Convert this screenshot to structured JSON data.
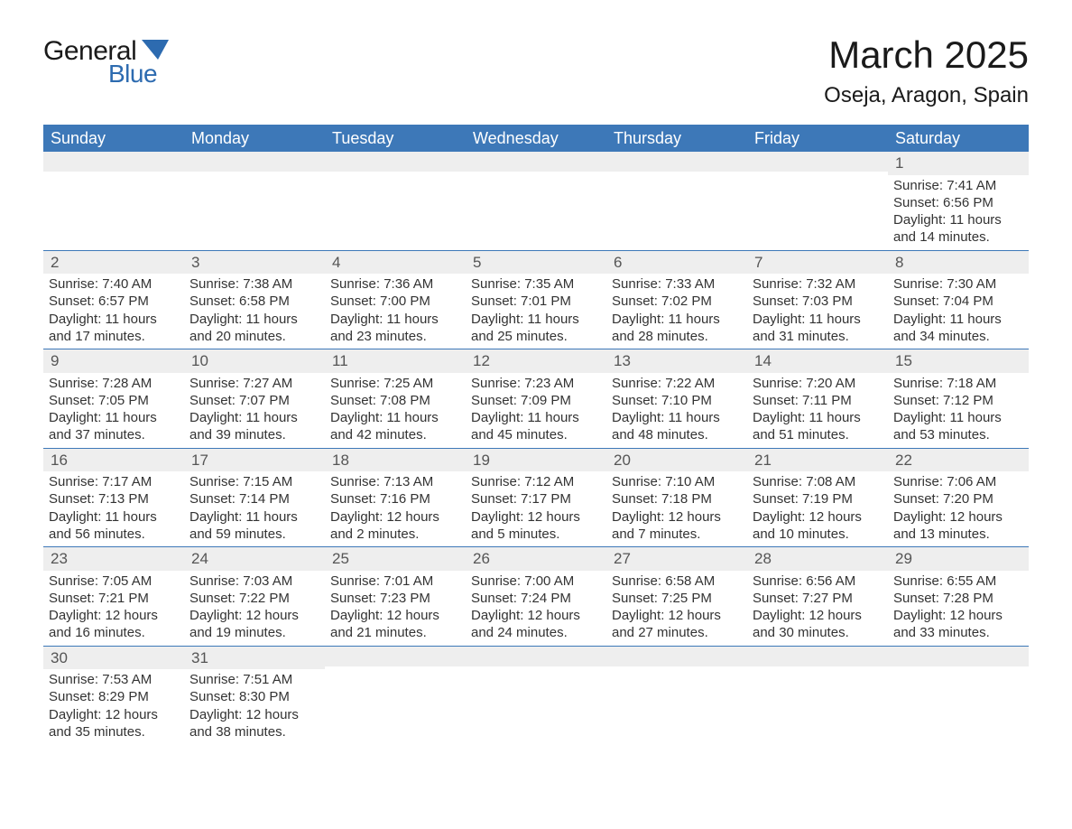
{
  "logo": {
    "general": "General",
    "blue": "Blue"
  },
  "title": "March 2025",
  "location": "Oseja, Aragon, Spain",
  "colors": {
    "header_bg": "#3d78b8",
    "header_text": "#ffffff",
    "daynum_bg": "#eeeeee",
    "text": "#333333",
    "logo_blue": "#2d6bb0"
  },
  "weekdays": [
    "Sunday",
    "Monday",
    "Tuesday",
    "Wednesday",
    "Thursday",
    "Friday",
    "Saturday"
  ],
  "weeks": [
    [
      null,
      null,
      null,
      null,
      null,
      null,
      {
        "n": "1",
        "sunrise": "7:41 AM",
        "sunset": "6:56 PM",
        "daylight": "11 hours and 14 minutes."
      }
    ],
    [
      {
        "n": "2",
        "sunrise": "7:40 AM",
        "sunset": "6:57 PM",
        "daylight": "11 hours and 17 minutes."
      },
      {
        "n": "3",
        "sunrise": "7:38 AM",
        "sunset": "6:58 PM",
        "daylight": "11 hours and 20 minutes."
      },
      {
        "n": "4",
        "sunrise": "7:36 AM",
        "sunset": "7:00 PM",
        "daylight": "11 hours and 23 minutes."
      },
      {
        "n": "5",
        "sunrise": "7:35 AM",
        "sunset": "7:01 PM",
        "daylight": "11 hours and 25 minutes."
      },
      {
        "n": "6",
        "sunrise": "7:33 AM",
        "sunset": "7:02 PM",
        "daylight": "11 hours and 28 minutes."
      },
      {
        "n": "7",
        "sunrise": "7:32 AM",
        "sunset": "7:03 PM",
        "daylight": "11 hours and 31 minutes."
      },
      {
        "n": "8",
        "sunrise": "7:30 AM",
        "sunset": "7:04 PM",
        "daylight": "11 hours and 34 minutes."
      }
    ],
    [
      {
        "n": "9",
        "sunrise": "7:28 AM",
        "sunset": "7:05 PM",
        "daylight": "11 hours and 37 minutes."
      },
      {
        "n": "10",
        "sunrise": "7:27 AM",
        "sunset": "7:07 PM",
        "daylight": "11 hours and 39 minutes."
      },
      {
        "n": "11",
        "sunrise": "7:25 AM",
        "sunset": "7:08 PM",
        "daylight": "11 hours and 42 minutes."
      },
      {
        "n": "12",
        "sunrise": "7:23 AM",
        "sunset": "7:09 PM",
        "daylight": "11 hours and 45 minutes."
      },
      {
        "n": "13",
        "sunrise": "7:22 AM",
        "sunset": "7:10 PM",
        "daylight": "11 hours and 48 minutes."
      },
      {
        "n": "14",
        "sunrise": "7:20 AM",
        "sunset": "7:11 PM",
        "daylight": "11 hours and 51 minutes."
      },
      {
        "n": "15",
        "sunrise": "7:18 AM",
        "sunset": "7:12 PM",
        "daylight": "11 hours and 53 minutes."
      }
    ],
    [
      {
        "n": "16",
        "sunrise": "7:17 AM",
        "sunset": "7:13 PM",
        "daylight": "11 hours and 56 minutes."
      },
      {
        "n": "17",
        "sunrise": "7:15 AM",
        "sunset": "7:14 PM",
        "daylight": "11 hours and 59 minutes."
      },
      {
        "n": "18",
        "sunrise": "7:13 AM",
        "sunset": "7:16 PM",
        "daylight": "12 hours and 2 minutes."
      },
      {
        "n": "19",
        "sunrise": "7:12 AM",
        "sunset": "7:17 PM",
        "daylight": "12 hours and 5 minutes."
      },
      {
        "n": "20",
        "sunrise": "7:10 AM",
        "sunset": "7:18 PM",
        "daylight": "12 hours and 7 minutes."
      },
      {
        "n": "21",
        "sunrise": "7:08 AM",
        "sunset": "7:19 PM",
        "daylight": "12 hours and 10 minutes."
      },
      {
        "n": "22",
        "sunrise": "7:06 AM",
        "sunset": "7:20 PM",
        "daylight": "12 hours and 13 minutes."
      }
    ],
    [
      {
        "n": "23",
        "sunrise": "7:05 AM",
        "sunset": "7:21 PM",
        "daylight": "12 hours and 16 minutes."
      },
      {
        "n": "24",
        "sunrise": "7:03 AM",
        "sunset": "7:22 PM",
        "daylight": "12 hours and 19 minutes."
      },
      {
        "n": "25",
        "sunrise": "7:01 AM",
        "sunset": "7:23 PM",
        "daylight": "12 hours and 21 minutes."
      },
      {
        "n": "26",
        "sunrise": "7:00 AM",
        "sunset": "7:24 PM",
        "daylight": "12 hours and 24 minutes."
      },
      {
        "n": "27",
        "sunrise": "6:58 AM",
        "sunset": "7:25 PM",
        "daylight": "12 hours and 27 minutes."
      },
      {
        "n": "28",
        "sunrise": "6:56 AM",
        "sunset": "7:27 PM",
        "daylight": "12 hours and 30 minutes."
      },
      {
        "n": "29",
        "sunrise": "6:55 AM",
        "sunset": "7:28 PM",
        "daylight": "12 hours and 33 minutes."
      }
    ],
    [
      {
        "n": "30",
        "sunrise": "7:53 AM",
        "sunset": "8:29 PM",
        "daylight": "12 hours and 35 minutes."
      },
      {
        "n": "31",
        "sunrise": "7:51 AM",
        "sunset": "8:30 PM",
        "daylight": "12 hours and 38 minutes."
      },
      null,
      null,
      null,
      null,
      null
    ]
  ],
  "labels": {
    "sunrise": "Sunrise:",
    "sunset": "Sunset:",
    "daylight": "Daylight:"
  }
}
